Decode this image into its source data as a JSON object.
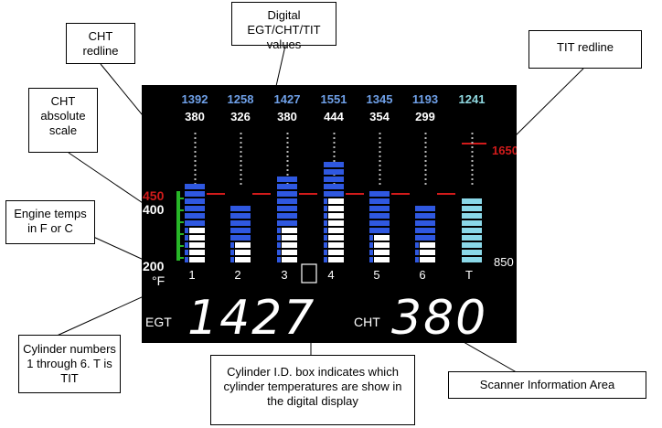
{
  "callouts": {
    "digital_values": "Digital EGT/CHT/TIT values",
    "cht_redline": "CHT redline",
    "tit_redline": "TIT redline",
    "cht_scale": "CHT absolute scale",
    "engine_temps": "Engine temps in F or C",
    "cylinder_numbers": "Cylinder numbers 1 through 6. T is TIT",
    "cylinder_id_box": "Cylinder I.D. box indicates which cylinder temperatures are show in the digital display",
    "scanner_area": "Scanner Information Area"
  },
  "display": {
    "egt_values": [
      "1392",
      "1258",
      "1427",
      "1551",
      "1345",
      "1193",
      "1241"
    ],
    "cht_values": [
      "380",
      "326",
      "380",
      "444",
      "354",
      "299"
    ],
    "tit_redline_value": "1650",
    "cht_redline_value": "450",
    "cht_scale_mid": "400",
    "cht_scale_min": "200",
    "tit_scale_min": "850",
    "unit_label": "°F",
    "column_labels": [
      "1",
      "2",
      "3",
      "4",
      "5",
      "6",
      "T"
    ],
    "selected_column": "3",
    "egt_label": "EGT",
    "egt_readout": "1427",
    "cht_label": "CHT",
    "cht_readout": "380",
    "colors": {
      "background": "#000000",
      "egt_text": "#6fa0e8",
      "tit_text": "#8fd8e0",
      "cht_text": "#ffffff",
      "egt_bar": "#2f58e0",
      "cht_bar": "#ffffff",
      "tit_bar": "#8ad8e8",
      "redline": "#d21b1b",
      "scale_green": "#27b627"
    }
  },
  "levels": {
    "egt_segments_lit": [
      6,
      5,
      7,
      9,
      6,
      5
    ],
    "cht_segments_lit": [
      5,
      3,
      5,
      9,
      4,
      3
    ],
    "tit_segments_lit": 9,
    "segments_total": 14
  }
}
